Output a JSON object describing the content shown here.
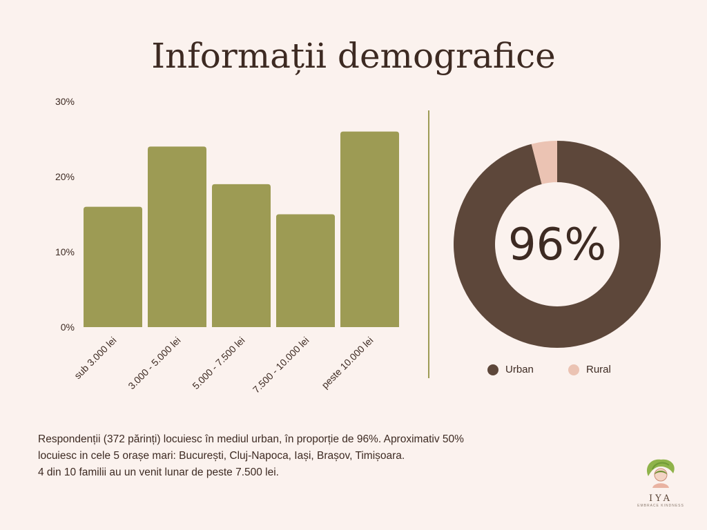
{
  "title": "Informații demografice",
  "colors": {
    "background": "#fbf2ee",
    "bar": "#9d9b54",
    "urban": "#5d473a",
    "rural": "#ebc3b3",
    "text": "#3d2a22"
  },
  "chart_data": [
    {
      "type": "bar",
      "categories": [
        "sub 3.000 lei",
        "3.000 - 5.000 lei",
        "5.000 - 7.500 lei",
        "7.500 - 10.000 lei",
        "peste 10.000 lei"
      ],
      "values": [
        16,
        24,
        19,
        15,
        26
      ],
      "ylim": [
        0,
        30
      ],
      "yticks": [
        0,
        10,
        20,
        30
      ],
      "ytick_labels": [
        "0%",
        "10%",
        "20%",
        "30%"
      ],
      "grid": false
    },
    {
      "type": "pie",
      "donut": true,
      "labels": [
        "Urban",
        "Rural"
      ],
      "values": [
        96,
        4
      ],
      "center_label": "96%",
      "legend": "bottom"
    }
  ],
  "legend": [
    {
      "label": "Urban",
      "color": "#5d473a"
    },
    {
      "label": "Rural",
      "color": "#ebc3b3"
    }
  ],
  "description": [
    "Respondenții (372 părinți) locuiesc în mediul urban, în proporție de 96%. Aproximativ 50%",
    "locuiesc in cele 5 orașe mari: București, Cluj-Napoca, Iași, Brașov, Timișoara.",
    "4 din 10 familii au un venit lunar de peste 7.500 lei."
  ],
  "logo": {
    "name": "IYA",
    "tagline": "EMBRACE KINDNESS",
    "icon": "leaf-woman-icon"
  }
}
